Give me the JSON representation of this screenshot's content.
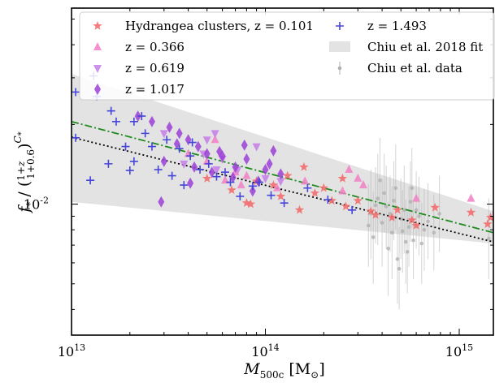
{
  "colors": {
    "hydrangea": "#f26d6d",
    "z0366": "#f27fc4",
    "z0619": "#c77de8",
    "z1017": "#9b3fd6",
    "z1493": "#4545d8",
    "chiu_fit": "#d9d9d9",
    "chiu_data": "#b0b0b0",
    "dashdot": "#1e8a1e",
    "dotted": "#000000"
  },
  "chart_data": {
    "type": "scatter",
    "xlabel": "M500c [M⊙]",
    "ylabel": "f* / ((1+z)/(1+0.6))^C*",
    "xscale": "log",
    "yscale": "log",
    "xlim": [
      10000000000000.0,
      1500000000000000.0
    ],
    "ylim": [
      0.0032,
      0.055
    ],
    "x_ticks": [
      {
        "value": 10000000000000.0,
        "label": "10^13"
      },
      {
        "value": 100000000000000.0,
        "label": "10^14"
      },
      {
        "value": 1000000000000000.0,
        "label": "10^15"
      }
    ],
    "y_ticks": [
      {
        "value": 0.01,
        "label": "10^-2"
      }
    ],
    "legend_position": "top",
    "legend": [
      {
        "key": "hydrangea",
        "label": "Hydrangea clusters, z = 0.101",
        "marker": "star"
      },
      {
        "key": "z0366",
        "label": "z = 0.366",
        "marker": "triangle-up"
      },
      {
        "key": "z0619",
        "label": "z = 0.619",
        "marker": "triangle-down"
      },
      {
        "key": "z1017",
        "label": "z = 1.017",
        "marker": "diamond"
      },
      {
        "key": "z1493",
        "label": "z = 1.493",
        "marker": "plus"
      },
      {
        "key": "chiu_fit",
        "label": "Chiu et al. 2018 fit",
        "marker": "band"
      },
      {
        "key": "chiu_data",
        "label": "Chiu et al. data",
        "marker": "errorbar"
      }
    ],
    "band": {
      "x": [
        10000000000000.0,
        1500000000000000.0
      ],
      "upper": [
        0.031,
        0.0094
      ],
      "lower": [
        0.0102,
        0.0071
      ]
    },
    "lines": [
      {
        "key": "dashdot",
        "style": "dashdot",
        "x": [
          10000000000000.0,
          1500000000000000.0
        ],
        "y": [
          0.0205,
          0.0078
        ]
      },
      {
        "key": "dotted",
        "style": "dotted",
        "x": [
          10000000000000.0,
          1500000000000000.0
        ],
        "y": [
          0.0179,
          0.0072
        ]
      }
    ],
    "series": [
      {
        "key": "hydrangea",
        "marker": "star",
        "points": [
          [
            158000000000000.0,
            0.0138
          ],
          [
            250000000000000.0,
            0.0125
          ],
          [
            750000000000000.0,
            0.0097
          ],
          [
            1150000000000000.0,
            0.0093
          ],
          [
            110000000000000.0,
            0.0118
          ],
          [
            84000000000000.0,
            0.01
          ],
          [
            150000000000000.0,
            0.0095
          ],
          [
            130000000000000.0,
            0.0128
          ],
          [
            200000000000000.0,
            0.0115
          ],
          [
            220000000000000.0,
            0.0103
          ],
          [
            260000000000000.0,
            0.0098
          ],
          [
            67000000000000.0,
            0.0113
          ],
          [
            300000000000000.0,
            0.0103
          ],
          [
            180000000000000.0,
            0.011
          ],
          [
            90000000000000.0,
            0.0122
          ],
          [
            1450000000000000.0,
            0.0089
          ],
          [
            370000000000000.0,
            0.0091
          ],
          [
            570000000000000.0,
            0.0087
          ],
          [
            80000000000000.0,
            0.0101
          ],
          [
            480000000000000.0,
            0.0095
          ],
          [
            600000000000000.0,
            0.0083
          ],
          [
            120000000000000.0,
            0.0107
          ],
          [
            50000000000000.0,
            0.0125
          ],
          [
            1400000000000000.0,
            0.0084
          ],
          [
            350000000000000.0,
            0.0094
          ],
          [
            450000000000000.0,
            0.0089
          ]
        ]
      },
      {
        "key": "z0366",
        "marker": "triangle-up",
        "points": [
          [
            270000000000000.0,
            0.0135
          ],
          [
            160000000000000.0,
            0.0122
          ],
          [
            55000000000000.0,
            0.0175
          ],
          [
            40000000000000.0,
            0.0155
          ],
          [
            50000000000000.0,
            0.0145
          ],
          [
            80000000000000.0,
            0.0128
          ],
          [
            300000000000000.0,
            0.0125
          ],
          [
            600000000000000.0,
            0.0105
          ],
          [
            75000000000000.0,
            0.0118
          ],
          [
            1150000000000000.0,
            0.0105
          ],
          [
            320000000000000.0,
            0.0118
          ],
          [
            115000000000000.0,
            0.0115
          ],
          [
            70000000000000.0,
            0.0132
          ],
          [
            62000000000000.0,
            0.0123
          ],
          [
            250000000000000.0,
            0.0112
          ]
        ]
      },
      {
        "key": "z0619",
        "marker": "triangle-down",
        "points": [
          [
            55000000000000.0,
            0.0185
          ],
          [
            50000000000000.0,
            0.0175
          ],
          [
            90000000000000.0,
            0.0165
          ],
          [
            60000000000000.0,
            0.0148
          ],
          [
            30000000000000.0,
            0.0185
          ],
          [
            48000000000000.0,
            0.0155
          ],
          [
            100000000000000.0,
            0.0125
          ],
          [
            38000000000000.0,
            0.0142
          ],
          [
            72000000000000.0,
            0.0135
          ],
          [
            120000000000000.0,
            0.0122
          ],
          [
            56000000000000.0,
            0.0135
          ]
        ]
      },
      {
        "key": "z1017",
        "marker": "diamond",
        "points": [
          [
            22000000000000.0,
            0.0215
          ],
          [
            26000000000000.0,
            0.0205
          ],
          [
            32000000000000.0,
            0.0195
          ],
          [
            36000000000000.0,
            0.0185
          ],
          [
            40000000000000.0,
            0.0175
          ],
          [
            45000000000000.0,
            0.0165
          ],
          [
            50000000000000.0,
            0.0155
          ],
          [
            30000000000000.0,
            0.0145
          ],
          [
            60000000000000.0,
            0.0152
          ],
          [
            80000000000000.0,
            0.0148
          ],
          [
            70000000000000.0,
            0.0138
          ],
          [
            100000000000000.0,
            0.0135
          ],
          [
            120000000000000.0,
            0.013
          ],
          [
            29000000000000.0,
            0.0102
          ],
          [
            41000000000000.0,
            0.012
          ],
          [
            53000000000000.0,
            0.0132
          ],
          [
            68000000000000.0,
            0.0126
          ],
          [
            92000000000000.0,
            0.0122
          ],
          [
            35000000000000.0,
            0.0169
          ],
          [
            58000000000000.0,
            0.0158
          ],
          [
            43000000000000.0,
            0.0138
          ],
          [
            78000000000000.0,
            0.0167
          ],
          [
            110000000000000.0,
            0.0159
          ],
          [
            86000000000000.0,
            0.0112
          ],
          [
            105000000000000.0,
            0.0142
          ]
        ]
      },
      {
        "key": "z1493",
        "marker": "plus",
        "points": [
          [
            10500000000000.0,
            0.0265
          ],
          [
            13000000000000.0,
            0.0305
          ],
          [
            13500000000000.0,
            0.0255
          ],
          [
            16000000000000.0,
            0.0225
          ],
          [
            17000000000000.0,
            0.0205
          ],
          [
            21000000000000.0,
            0.0205
          ],
          [
            23000000000000.0,
            0.0215
          ],
          [
            19000000000000.0,
            0.0165
          ],
          [
            21000000000000.0,
            0.0145
          ],
          [
            24000000000000.0,
            0.0185
          ],
          [
            26000000000000.0,
            0.0165
          ],
          [
            31000000000000.0,
            0.0175
          ],
          [
            36000000000000.0,
            0.0162
          ],
          [
            41000000000000.0,
            0.0152
          ],
          [
            51000000000000.0,
            0.0142
          ],
          [
            28000000000000.0,
            0.0135
          ],
          [
            33000000000000.0,
            0.0128
          ],
          [
            46000000000000.0,
            0.0135
          ],
          [
            56000000000000.0,
            0.0127
          ],
          [
            66000000000000.0,
            0.0121
          ],
          [
            86000000000000.0,
            0.0117
          ],
          [
            107000000000000.0,
            0.0108
          ],
          [
            10500000000000.0,
            0.0178
          ],
          [
            15500000000000.0,
            0.0142
          ],
          [
            12500000000000.0,
            0.0123
          ],
          [
            20000000000000.0,
            0.0134
          ],
          [
            38000000000000.0,
            0.0118
          ],
          [
            62000000000000.0,
            0.0132
          ],
          [
            74000000000000.0,
            0.0107
          ],
          [
            93000000000000.0,
            0.0121
          ],
          [
            125000000000000.0,
            0.0101
          ],
          [
            165000000000000.0,
            0.0115
          ],
          [
            210000000000000.0,
            0.0104
          ],
          [
            280000000000000.0,
            0.0095
          ],
          [
            42000000000000.0,
            0.0171
          ]
        ]
      },
      {
        "key": "chiu_data",
        "marker": "errorbar",
        "points": [
          [
            350000000000000.0,
            0.0092,
            0.0062,
            0.0135
          ],
          [
            380000000000000.0,
            0.0105,
            0.007,
            0.0155
          ],
          [
            400000000000000.0,
            0.0085,
            0.0058,
            0.0125
          ],
          [
            420000000000000.0,
            0.0098,
            0.0068,
            0.014
          ],
          [
            450000000000000.0,
            0.0078,
            0.0052,
            0.0117
          ],
          [
            470000000000000.0,
            0.0115,
            0.008,
            0.0168
          ],
          [
            500000000000000.0,
            0.0088,
            0.0062,
            0.0125
          ],
          [
            520000000000000.0,
            0.0095,
            0.0065,
            0.014
          ],
          [
            550000000000000.0,
            0.0082,
            0.0058,
            0.0117
          ],
          [
            580000000000000.0,
            0.0073,
            0.0052,
            0.0102
          ],
          [
            620000000000000.0,
            0.009,
            0.0064,
            0.0127
          ],
          [
            660000000000000.0,
            0.008,
            0.0056,
            0.0114
          ],
          [
            360000000000000.0,
            0.0075,
            0.005,
            0.0112
          ],
          [
            430000000000000.0,
            0.0068,
            0.0045,
            0.0102
          ],
          [
            480000000000000.0,
            0.0062,
            0.0042,
            0.0092
          ],
          [
            530000000000000.0,
            0.0072,
            0.005,
            0.0104
          ],
          [
            410000000000000.0,
            0.011,
            0.0078,
            0.0155
          ],
          [
            390000000000000.0,
            0.0123,
            0.0085,
            0.0178
          ],
          [
            560000000000000.0,
            0.0102,
            0.0072,
            0.0145
          ],
          [
            600000000000000.0,
            0.0095,
            0.0068,
            0.0133
          ],
          [
            690000000000000.0,
            0.0086,
            0.0062,
            0.012
          ],
          [
            740000000000000.0,
            0.0078,
            0.0056,
            0.0109
          ],
          [
            440000000000000.0,
            0.0092,
            0.0066,
            0.0128
          ],
          [
            510000000000000.0,
            0.0079,
            0.0055,
            0.0113
          ],
          [
            370000000000000.0,
            0.0099,
            0.0071,
            0.0138
          ],
          [
            460000000000000.0,
            0.0103,
            0.0073,
            0.0145
          ],
          [
            540000000000000.0,
            0.0066,
            0.0046,
            0.0094
          ],
          [
            640000000000000.0,
            0.0071,
            0.005,
            0.0101
          ],
          [
            340000000000000.0,
            0.0083,
            0.0058,
            0.0119
          ],
          [
            790000000000000.0,
            0.0092,
            0.0066,
            0.0128
          ],
          [
            490000000000000.0,
            0.0057,
            0.004,
            0.0082
          ],
          [
            570000000000000.0,
            0.0115,
            0.0081,
            0.0163
          ],
          [
            1420000000000000.0,
            0.0074,
            0.0052,
            0.0105
          ]
        ]
      }
    ]
  }
}
